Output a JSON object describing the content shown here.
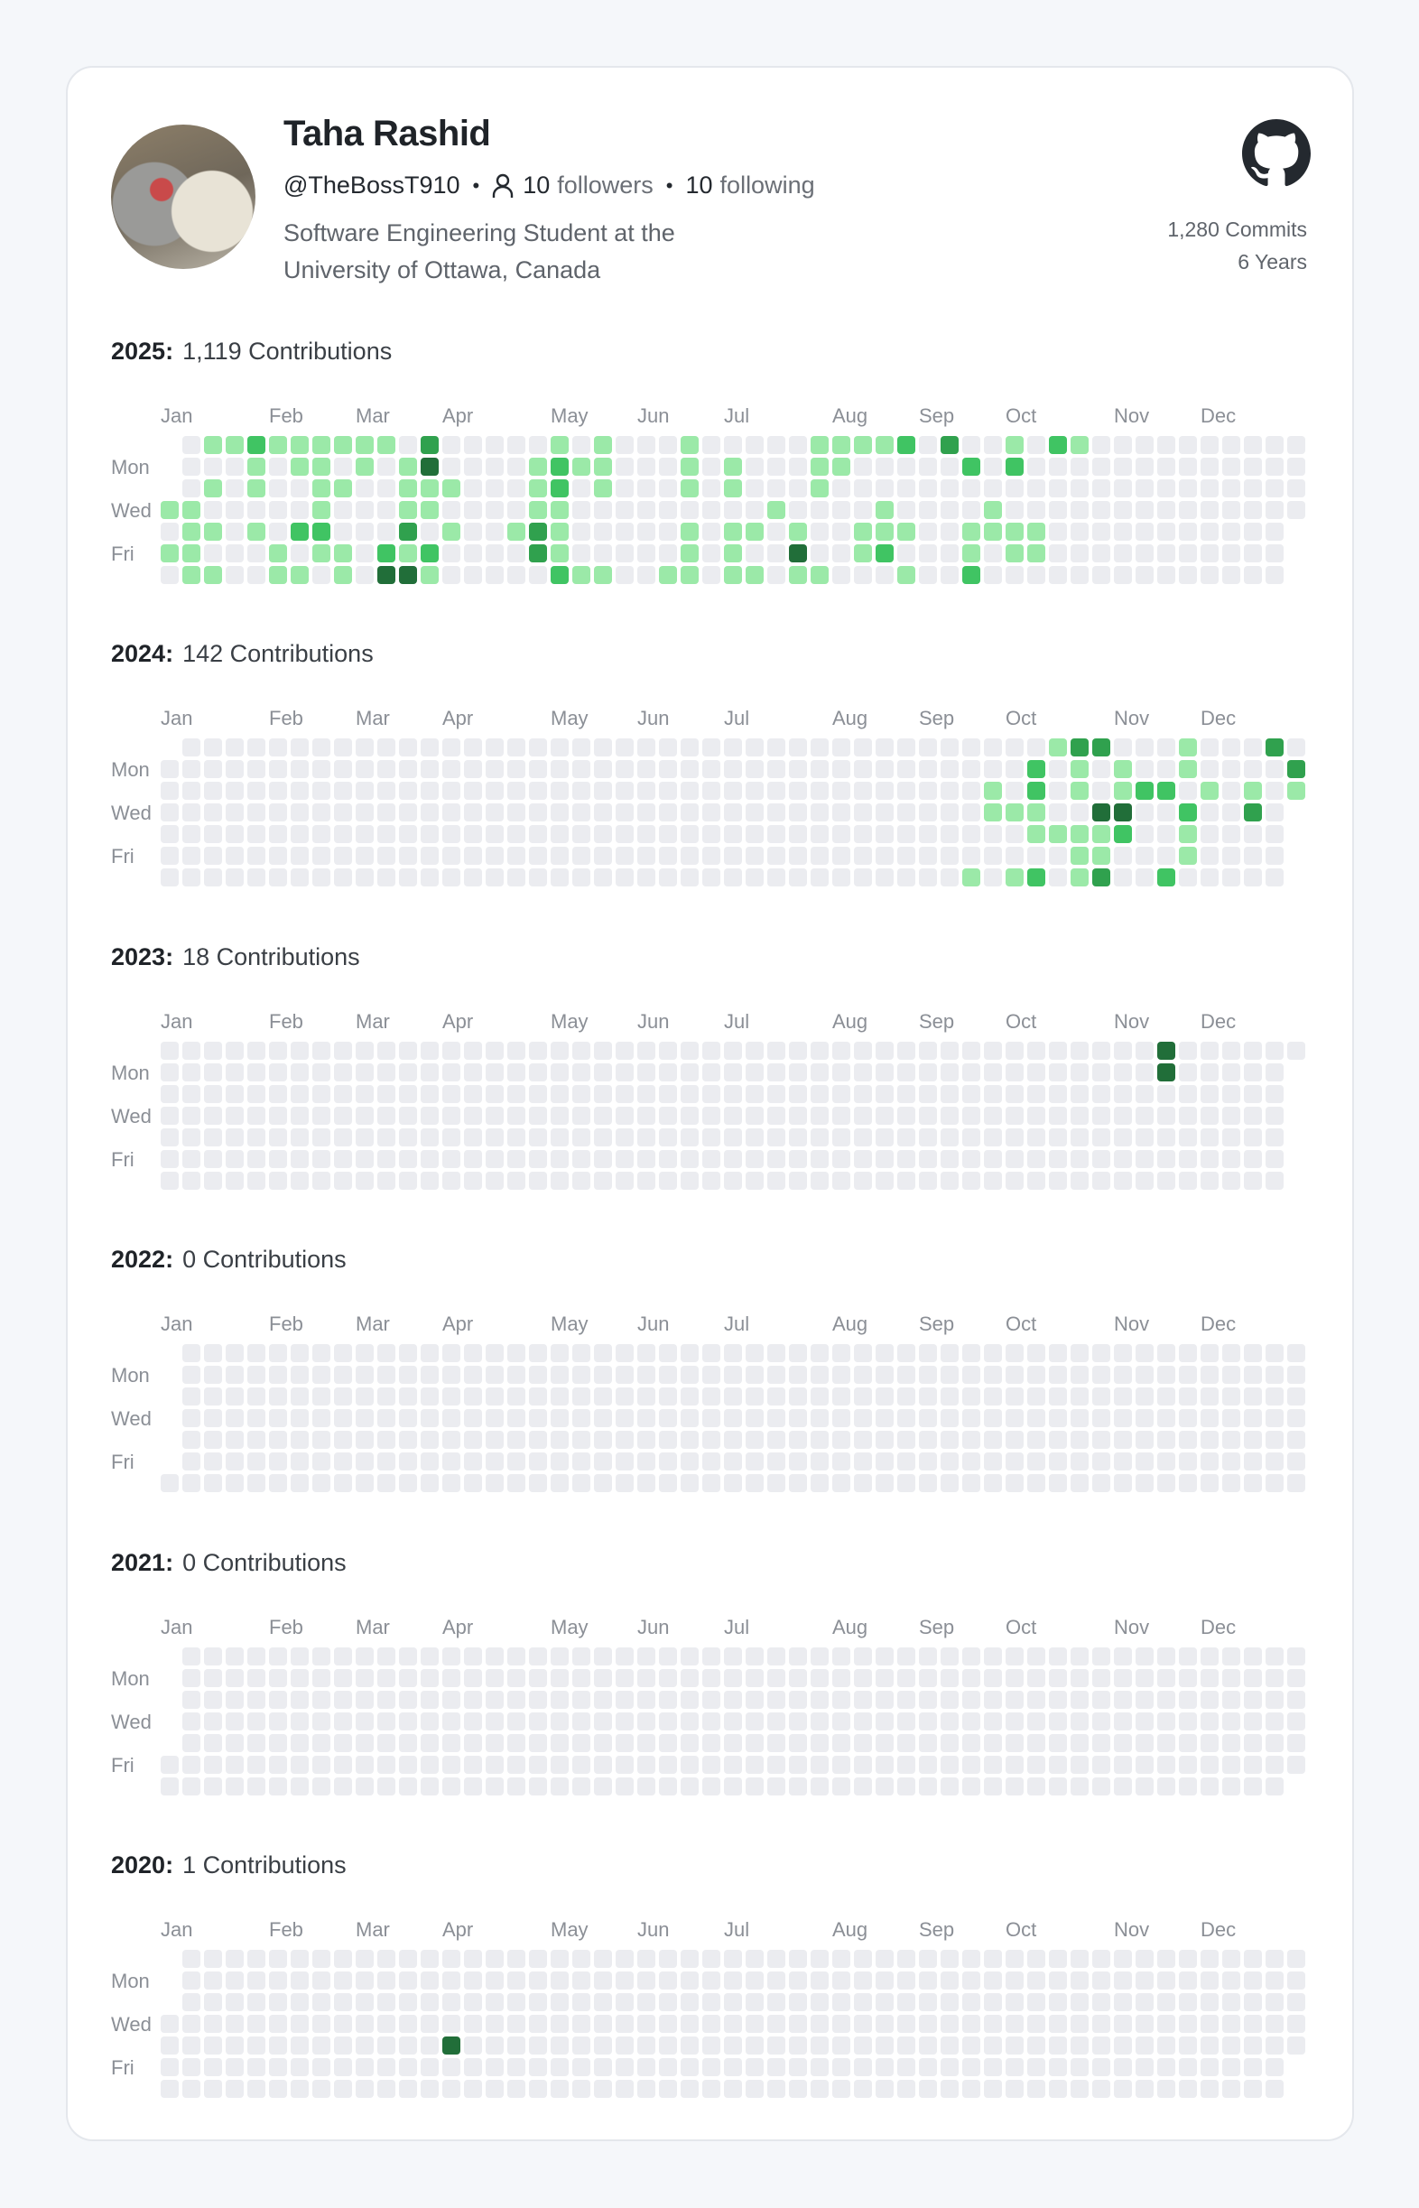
{
  "profile": {
    "name": "Taha Rashid",
    "handle": "@TheBossT910",
    "followers_count": "10",
    "followers_label": "followers",
    "following_count": "10",
    "following_label": "following",
    "separator": "•",
    "bio_line1": "Software Engineering Student at the",
    "bio_line2": "University of Ottawa, Canada",
    "commits": "1,280 Commits",
    "years": "6 Years",
    "icons": {
      "followers": "person-icon",
      "brand": "github-icon",
      "avatar": "avatar-photo"
    }
  },
  "months": [
    "Jan",
    "Feb",
    "Mar",
    "Apr",
    "May",
    "Jun",
    "Jul",
    "Aug",
    "Sep",
    "Oct",
    "Nov",
    "Dec"
  ],
  "day_labels": [
    "Mon",
    "Wed",
    "Fri"
  ],
  "level_colors": [
    "#ebecf0",
    "#9be9a8",
    "#40c463",
    "#30a14e",
    "#216e39"
  ],
  "years": [
    {
      "label": "2025:",
      "count_text": "1,119 Contributions",
      "first_weekday": 3,
      "days": 365,
      "rows": [
        " 0112111111030000010100010000011112030010210000000000",
        " 0001011010140000121100010100011000002020000000000000",
        " 0101001100111000120100010100010000000000000000000000",
        "11000001000110000110000000001000010000100000000000000",
        "011010220003010013100000101101001110011110000000000 ",
        "110001011021200003100000101004001200010110000000000 ",
        "011001101044100000211001101101100010020000000000000 "
      ]
    },
    {
      "label": "2024:",
      "count_text": "142 Contributions",
      "first_weekday": 1,
      "days": 366,
      "cells": [
        [
          41,
          0,
          1
        ],
        [
          42,
          0,
          3
        ],
        [
          43,
          0,
          3
        ],
        [
          47,
          0,
          1
        ],
        [
          51,
          0,
          3
        ],
        [
          40,
          1,
          2
        ],
        [
          42,
          1,
          1
        ],
        [
          44,
          1,
          1
        ],
        [
          47,
          1,
          1
        ],
        [
          52,
          1,
          3
        ],
        [
          38,
          2,
          1
        ],
        [
          40,
          2,
          2
        ],
        [
          42,
          2,
          1
        ],
        [
          44,
          2,
          1
        ],
        [
          45,
          2,
          2
        ],
        [
          46,
          2,
          2
        ],
        [
          48,
          2,
          1
        ],
        [
          50,
          2,
          1
        ],
        [
          52,
          2,
          1
        ],
        [
          38,
          3,
          1
        ],
        [
          39,
          3,
          1
        ],
        [
          40,
          3,
          1
        ],
        [
          43,
          3,
          4
        ],
        [
          44,
          3,
          4
        ],
        [
          47,
          3,
          2
        ],
        [
          50,
          3,
          3
        ],
        [
          40,
          4,
          1
        ],
        [
          41,
          4,
          1
        ],
        [
          42,
          4,
          1
        ],
        [
          43,
          4,
          1
        ],
        [
          44,
          4,
          2
        ],
        [
          47,
          4,
          1
        ],
        [
          42,
          5,
          1
        ],
        [
          43,
          5,
          1
        ],
        [
          47,
          5,
          1
        ],
        [
          37,
          6,
          1
        ],
        [
          39,
          6,
          1
        ],
        [
          40,
          6,
          2
        ],
        [
          42,
          6,
          1
        ],
        [
          43,
          6,
          3
        ],
        [
          46,
          6,
          2
        ]
      ]
    },
    {
      "label": "2023:",
      "count_text": "18 Contributions",
      "first_weekday": 0,
      "days": 365,
      "cells": [
        [
          46,
          0,
          4
        ],
        [
          46,
          1,
          4
        ]
      ]
    },
    {
      "label": "2022:",
      "count_text": "0 Contributions",
      "first_weekday": 6,
      "days": 365,
      "cells": []
    },
    {
      "label": "2021:",
      "count_text": "0 Contributions",
      "first_weekday": 5,
      "days": 365,
      "cells": []
    },
    {
      "label": "2020:",
      "count_text": "1 Contributions",
      "first_weekday": 3,
      "days": 366,
      "cells": [
        [
          13,
          4,
          4
        ]
      ]
    }
  ]
}
